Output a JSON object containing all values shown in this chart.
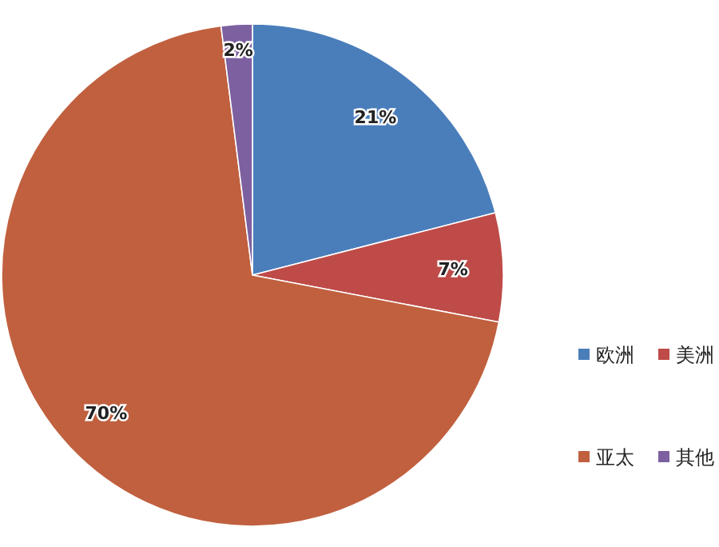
{
  "chart_data": {
    "type": "pie",
    "categories": [
      "欧洲",
      "美洲",
      "亚太",
      "其他"
    ],
    "values": [
      21,
      7,
      70,
      2
    ],
    "value_labels": [
      "21%",
      "7%",
      "70%",
      "2%"
    ],
    "colors": [
      "#4a7ebb",
      "#be4b48",
      "#c0603f",
      "#7d60a0"
    ],
    "legend": "right"
  }
}
